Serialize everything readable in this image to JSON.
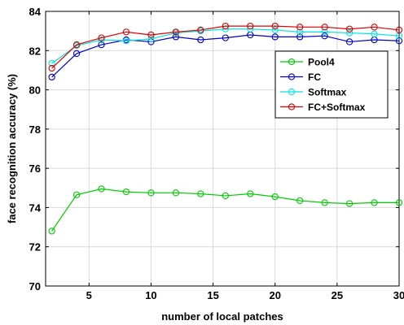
{
  "chart_data": {
    "type": "line",
    "xlabel": "number of  local patches",
    "ylabel": "face recognition accuracy (%)",
    "xlim": [
      1.5,
      30
    ],
    "ylim": [
      70,
      84
    ],
    "xticks": [
      5,
      10,
      15,
      20,
      25,
      30
    ],
    "yticks": [
      70,
      72,
      74,
      76,
      78,
      80,
      82,
      84
    ],
    "grid": true,
    "legend_position": "top-right",
    "x": [
      2,
      4,
      6,
      8,
      10,
      12,
      14,
      16,
      18,
      20,
      22,
      24,
      26,
      28,
      30
    ],
    "series": [
      {
        "name": "Pool4",
        "color": "#00cc00",
        "marker": "circle",
        "values": [
          72.8,
          74.65,
          74.95,
          74.8,
          74.75,
          74.75,
          74.7,
          74.6,
          74.7,
          74.55,
          74.35,
          74.25,
          74.2,
          74.25,
          74.25
        ]
      },
      {
        "name": "FC",
        "color": "#0000cc",
        "marker": "circle",
        "values": [
          80.65,
          81.85,
          82.3,
          82.55,
          82.45,
          82.7,
          82.55,
          82.65,
          82.8,
          82.7,
          82.7,
          82.75,
          82.45,
          82.55,
          82.5
        ]
      },
      {
        "name": "Softmax",
        "color": "#00e5e5",
        "marker": "circle",
        "values": [
          81.35,
          82.25,
          82.55,
          82.5,
          82.6,
          82.9,
          83.0,
          83.1,
          83.1,
          83.05,
          82.95,
          82.95,
          82.9,
          82.85,
          82.75
        ]
      },
      {
        "name": "FC+Softmax",
        "color": "#dd0000",
        "marker": "circle",
        "values": [
          81.1,
          82.3,
          82.65,
          82.95,
          82.8,
          82.95,
          83.05,
          83.25,
          83.25,
          83.25,
          83.2,
          83.2,
          83.1,
          83.2,
          83.05
        ]
      }
    ]
  }
}
